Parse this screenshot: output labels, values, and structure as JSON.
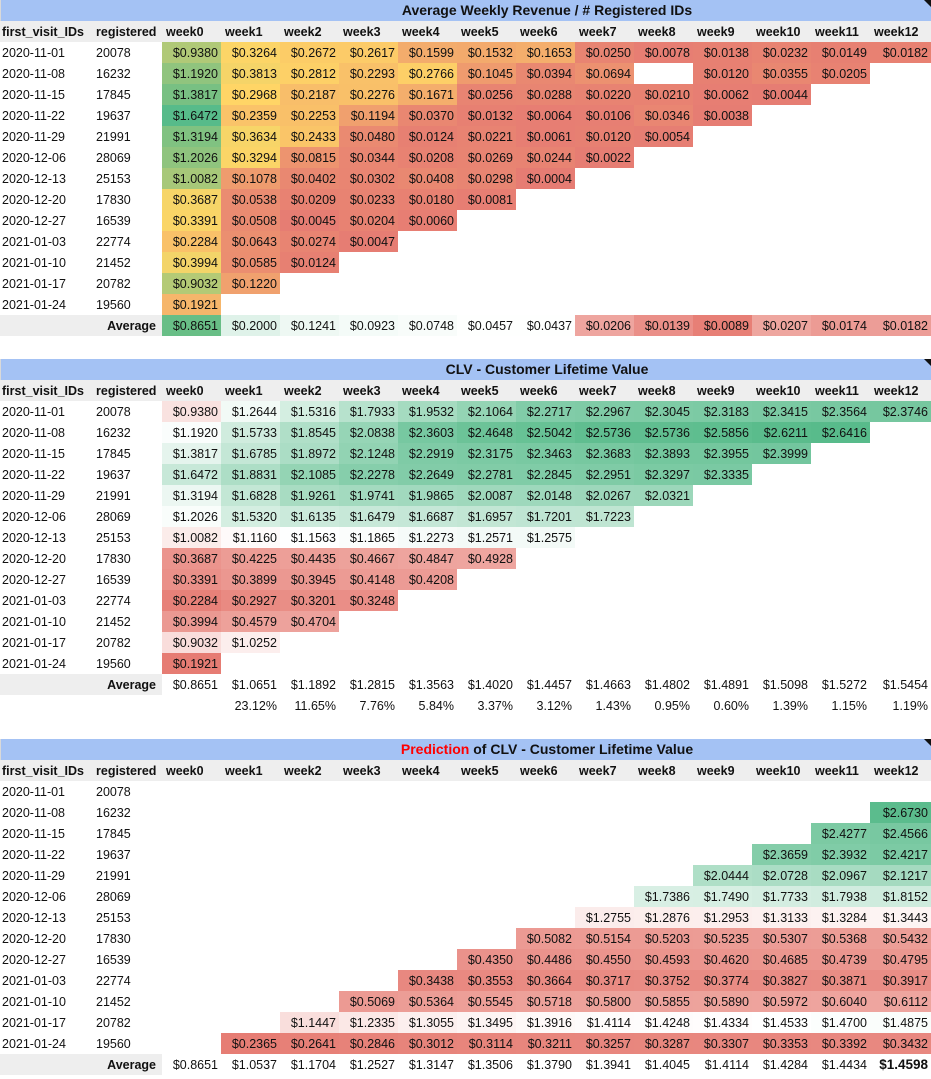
{
  "headers": [
    "first_visit_IDs",
    "registered",
    "week0",
    "week1",
    "week2",
    "week3",
    "week4",
    "week5",
    "week6",
    "week7",
    "week8",
    "week9",
    "week10",
    "week11",
    "week12"
  ],
  "average_label": "Average",
  "colors": {
    "title_bg": "#a4c2f4",
    "header_bg": "#eeeeee",
    "red_text": "#ff0000"
  },
  "revenue": {
    "title": "Average Weekly Revenue / # Registered IDs",
    "rows": [
      {
        "date": "2020-11-01",
        "reg": "20078",
        "vals": [
          "$0.9380",
          "$0.3264",
          "$0.2672",
          "$0.2617",
          "$0.1599",
          "$0.1532",
          "$0.1653",
          "$0.0250",
          "$0.0078",
          "$0.0138",
          "$0.0232",
          "$0.0149",
          "$0.0182"
        ]
      },
      {
        "date": "2020-11-08",
        "reg": "16232",
        "vals": [
          "$1.1920",
          "$0.3813",
          "$0.2812",
          "$0.2293",
          "$0.2766",
          "$0.1045",
          "$0.0394",
          "$0.0694",
          "",
          "$0.0120",
          "$0.0355",
          "$0.0205"
        ]
      },
      {
        "date": "2020-11-15",
        "reg": "17845",
        "vals": [
          "$1.3817",
          "$0.2968",
          "$0.2187",
          "$0.2276",
          "$0.1671",
          "$0.0256",
          "$0.0288",
          "$0.0220",
          "$0.0210",
          "$0.0062",
          "$0.0044"
        ]
      },
      {
        "date": "2020-11-22",
        "reg": "19637",
        "vals": [
          "$1.6472",
          "$0.2359",
          "$0.2253",
          "$0.1194",
          "$0.0370",
          "$0.0132",
          "$0.0064",
          "$0.0106",
          "$0.0346",
          "$0.0038"
        ]
      },
      {
        "date": "2020-11-29",
        "reg": "21991",
        "vals": [
          "$1.3194",
          "$0.3634",
          "$0.2433",
          "$0.0480",
          "$0.0124",
          "$0.0221",
          "$0.0061",
          "$0.0120",
          "$0.0054"
        ]
      },
      {
        "date": "2020-12-06",
        "reg": "28069",
        "vals": [
          "$1.2026",
          "$0.3294",
          "$0.0815",
          "$0.0344",
          "$0.0208",
          "$0.0269",
          "$0.0244",
          "$0.0022"
        ]
      },
      {
        "date": "2020-12-13",
        "reg": "25153",
        "vals": [
          "$1.0082",
          "$0.1078",
          "$0.0402",
          "$0.0302",
          "$0.0408",
          "$0.0298",
          "$0.0004"
        ]
      },
      {
        "date": "2020-12-20",
        "reg": "17830",
        "vals": [
          "$0.3687",
          "$0.0538",
          "$0.0209",
          "$0.0233",
          "$0.0180",
          "$0.0081"
        ]
      },
      {
        "date": "2020-12-27",
        "reg": "16539",
        "vals": [
          "$0.3391",
          "$0.0508",
          "$0.0045",
          "$0.0204",
          "$0.0060"
        ]
      },
      {
        "date": "2021-01-03",
        "reg": "22774",
        "vals": [
          "$0.2284",
          "$0.0643",
          "$0.0274",
          "$0.0047"
        ]
      },
      {
        "date": "2021-01-10",
        "reg": "21452",
        "vals": [
          "$0.3994",
          "$0.0585",
          "$0.0124"
        ]
      },
      {
        "date": "2021-01-17",
        "reg": "20782",
        "vals": [
          "$0.9032",
          "$0.1220"
        ]
      },
      {
        "date": "2021-01-24",
        "reg": "19560",
        "vals": [
          "$0.1921"
        ]
      }
    ],
    "average": [
      "$0.8651",
      "$0.2000",
      "$0.1241",
      "$0.0923",
      "$0.0748",
      "$0.0457",
      "$0.0437",
      "$0.0206",
      "$0.0139",
      "$0.0089",
      "$0.0207",
      "$0.0174",
      "$0.0182"
    ]
  },
  "clv": {
    "title": "CLV - Customer Lifetime Value",
    "rows": [
      {
        "date": "2020-11-01",
        "reg": "20078",
        "vals": [
          "$0.9380",
          "$1.2644",
          "$1.5316",
          "$1.7933",
          "$1.9532",
          "$2.1064",
          "$2.2717",
          "$2.2967",
          "$2.3045",
          "$2.3183",
          "$2.3415",
          "$2.3564",
          "$2.3746"
        ]
      },
      {
        "date": "2020-11-08",
        "reg": "16232",
        "vals": [
          "$1.1920",
          "$1.5733",
          "$1.8545",
          "$2.0838",
          "$2.3603",
          "$2.4648",
          "$2.5042",
          "$2.5736",
          "$2.5736",
          "$2.5856",
          "$2.6211",
          "$2.6416"
        ]
      },
      {
        "date": "2020-11-15",
        "reg": "17845",
        "vals": [
          "$1.3817",
          "$1.6785",
          "$1.8972",
          "$2.1248",
          "$2.2919",
          "$2.3175",
          "$2.3463",
          "$2.3683",
          "$2.3893",
          "$2.3955",
          "$2.3999"
        ]
      },
      {
        "date": "2020-11-22",
        "reg": "19637",
        "vals": [
          "$1.6472",
          "$1.8831",
          "$2.1085",
          "$2.2278",
          "$2.2649",
          "$2.2781",
          "$2.2845",
          "$2.2951",
          "$2.3297",
          "$2.3335"
        ]
      },
      {
        "date": "2020-11-29",
        "reg": "21991",
        "vals": [
          "$1.3194",
          "$1.6828",
          "$1.9261",
          "$1.9741",
          "$1.9865",
          "$2.0087",
          "$2.0148",
          "$2.0267",
          "$2.0321"
        ]
      },
      {
        "date": "2020-12-06",
        "reg": "28069",
        "vals": [
          "$1.2026",
          "$1.5320",
          "$1.6135",
          "$1.6479",
          "$1.6687",
          "$1.6957",
          "$1.7201",
          "$1.7223"
        ]
      },
      {
        "date": "2020-12-13",
        "reg": "25153",
        "vals": [
          "$1.0082",
          "$1.1160",
          "$1.1563",
          "$1.1865",
          "$1.2273",
          "$1.2571",
          "$1.2575"
        ]
      },
      {
        "date": "2020-12-20",
        "reg": "17830",
        "vals": [
          "$0.3687",
          "$0.4225",
          "$0.4435",
          "$0.4667",
          "$0.4847",
          "$0.4928"
        ]
      },
      {
        "date": "2020-12-27",
        "reg": "16539",
        "vals": [
          "$0.3391",
          "$0.3899",
          "$0.3945",
          "$0.4148",
          "$0.4208"
        ]
      },
      {
        "date": "2021-01-03",
        "reg": "22774",
        "vals": [
          "$0.2284",
          "$0.2927",
          "$0.3201",
          "$0.3248"
        ]
      },
      {
        "date": "2021-01-10",
        "reg": "21452",
        "vals": [
          "$0.3994",
          "$0.4579",
          "$0.4704"
        ]
      },
      {
        "date": "2021-01-17",
        "reg": "20782",
        "vals": [
          "$0.9032",
          "$1.0252"
        ]
      },
      {
        "date": "2021-01-24",
        "reg": "19560",
        "vals": [
          "$0.1921"
        ]
      }
    ],
    "average": [
      "$0.8651",
      "$1.0651",
      "$1.1892",
      "$1.2815",
      "$1.3563",
      "$1.4020",
      "$1.4457",
      "$1.4663",
      "$1.4802",
      "$1.4891",
      "$1.5098",
      "$1.5272",
      "$1.5454"
    ],
    "growth": [
      "",
      "23.12%",
      "11.65%",
      "7.76%",
      "5.84%",
      "3.37%",
      "3.12%",
      "1.43%",
      "0.95%",
      "0.60%",
      "1.39%",
      "1.15%",
      "1.19%"
    ]
  },
  "prediction": {
    "title_red": "Prediction",
    "title_rest": " of CLV - Customer Lifetime Value",
    "rows": [
      {
        "date": "2020-11-01",
        "reg": "20078",
        "vals": [
          "",
          "",
          "",
          "",
          "",
          "",
          "",
          "",
          "",
          "",
          "",
          "",
          ""
        ]
      },
      {
        "date": "2020-11-08",
        "reg": "16232",
        "vals": [
          "",
          "",
          "",
          "",
          "",
          "",
          "",
          "",
          "",
          "",
          "",
          "",
          "$2.6730"
        ]
      },
      {
        "date": "2020-11-15",
        "reg": "17845",
        "vals": [
          "",
          "",
          "",
          "",
          "",
          "",
          "",
          "",
          "",
          "",
          "",
          "$2.4277",
          "$2.4566"
        ]
      },
      {
        "date": "2020-11-22",
        "reg": "19637",
        "vals": [
          "",
          "",
          "",
          "",
          "",
          "",
          "",
          "",
          "",
          "",
          "$2.3659",
          "$2.3932",
          "$2.4217"
        ]
      },
      {
        "date": "2020-11-29",
        "reg": "21991",
        "vals": [
          "",
          "",
          "",
          "",
          "",
          "",
          "",
          "",
          "",
          "$2.0444",
          "$2.0728",
          "$2.0967",
          "$2.1217"
        ]
      },
      {
        "date": "2020-12-06",
        "reg": "28069",
        "vals": [
          "",
          "",
          "",
          "",
          "",
          "",
          "",
          "",
          "$1.7386",
          "$1.7490",
          "$1.7733",
          "$1.7938",
          "$1.8152"
        ]
      },
      {
        "date": "2020-12-13",
        "reg": "25153",
        "vals": [
          "",
          "",
          "",
          "",
          "",
          "",
          "",
          "$1.2755",
          "$1.2876",
          "$1.2953",
          "$1.3133",
          "$1.3284",
          "$1.3443"
        ]
      },
      {
        "date": "2020-12-20",
        "reg": "17830",
        "vals": [
          "",
          "",
          "",
          "",
          "",
          "",
          "$0.5082",
          "$0.5154",
          "$0.5203",
          "$0.5235",
          "$0.5307",
          "$0.5368",
          "$0.5432"
        ]
      },
      {
        "date": "2020-12-27",
        "reg": "16539",
        "vals": [
          "",
          "",
          "",
          "",
          "",
          "$0.4350",
          "$0.4486",
          "$0.4550",
          "$0.4593",
          "$0.4620",
          "$0.4685",
          "$0.4739",
          "$0.4795"
        ]
      },
      {
        "date": "2021-01-03",
        "reg": "22774",
        "vals": [
          "",
          "",
          "",
          "",
          "$0.3438",
          "$0.3553",
          "$0.3664",
          "$0.3717",
          "$0.3752",
          "$0.3774",
          "$0.3827",
          "$0.3871",
          "$0.3917"
        ]
      },
      {
        "date": "2021-01-10",
        "reg": "21452",
        "vals": [
          "",
          "",
          "",
          "$0.5069",
          "$0.5364",
          "$0.5545",
          "$0.5718",
          "$0.5800",
          "$0.5855",
          "$0.5890",
          "$0.5972",
          "$0.6040",
          "$0.6112"
        ]
      },
      {
        "date": "2021-01-17",
        "reg": "20782",
        "vals": [
          "",
          "",
          "$1.1447",
          "$1.2335",
          "$1.3055",
          "$1.3495",
          "$1.3916",
          "$1.4114",
          "$1.4248",
          "$1.4334",
          "$1.4533",
          "$1.4700",
          "$1.4875"
        ]
      },
      {
        "date": "2021-01-24",
        "reg": "19560",
        "vals": [
          "",
          "$0.2365",
          "$0.2641",
          "$0.2846",
          "$0.3012",
          "$0.3114",
          "$0.3211",
          "$0.3257",
          "$0.3287",
          "$0.3307",
          "$0.3353",
          "$0.3392",
          "$0.3432"
        ]
      }
    ],
    "average": [
      "$0.8651",
      "$1.0537",
      "$1.1704",
      "$1.2527",
      "$1.3147",
      "$1.3506",
      "$1.3790",
      "$1.3941",
      "$1.4045",
      "$1.4114",
      "$1.4284",
      "$1.4434",
      "$1.4598"
    ]
  }
}
